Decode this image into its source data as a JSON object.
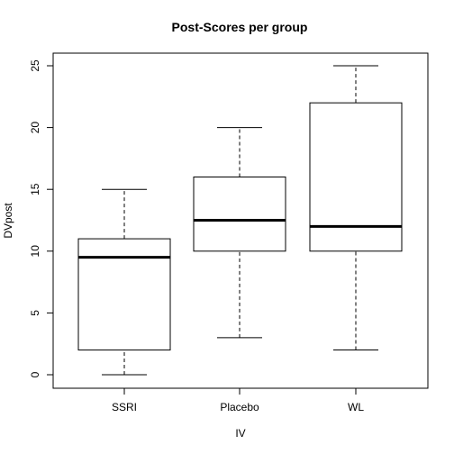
{
  "chart_data": {
    "type": "boxplot",
    "title": "Post-Scores per group",
    "xlabel": "IV",
    "ylabel": "DVpost",
    "categories": [
      "SSRI",
      "Placebo",
      "WL"
    ],
    "boxes": [
      {
        "category": "SSRI",
        "min": 0,
        "q1": 2,
        "median": 9.5,
        "q3": 11,
        "max": 15
      },
      {
        "category": "Placebo",
        "min": 3,
        "q1": 10,
        "median": 12.5,
        "q3": 16,
        "max": 20
      },
      {
        "category": "WL",
        "min": 2,
        "q1": 10,
        "median": 12,
        "q3": 22,
        "max": 25
      }
    ],
    "ylim": [
      0,
      25
    ],
    "yticks": [
      "0",
      "5",
      "10",
      "15",
      "20",
      "25"
    ],
    "grid": false,
    "legend": "none"
  }
}
